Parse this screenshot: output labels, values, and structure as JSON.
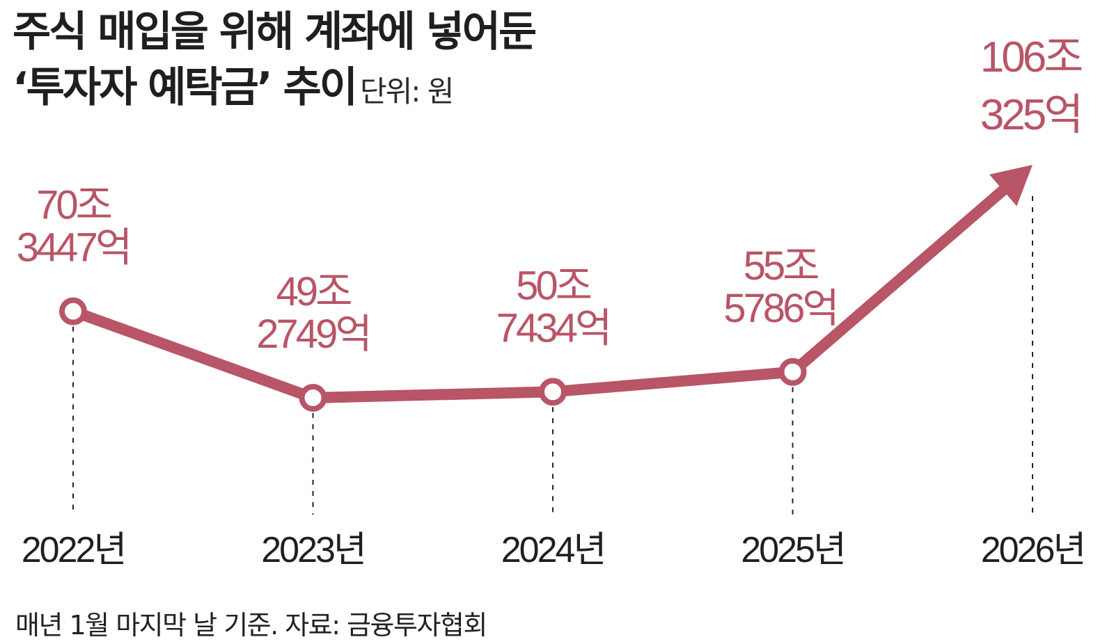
{
  "title": {
    "line1": "주식 매입을 위해 계좌에 넣어둔",
    "line2": "‘투자자 예탁금’ 추이",
    "unit": "단위: 원"
  },
  "footnote": "매년 1월 마지막 날 기준. 자료: 금융투자협회",
  "colors": {
    "line": "#b85566",
    "label": "#b85566",
    "text": "#1f1f1f",
    "guide": "#222222"
  },
  "chart_data": {
    "type": "line",
    "title": "주식 매입을 위해 계좌에 넣어둔 ‘투자자 예탁금’ 추이",
    "unit": "원",
    "categories": [
      "2022년",
      "2023년",
      "2024년",
      "2025년",
      "2026년"
    ],
    "values": [
      703447,
      492749,
      507434,
      555786,
      1060325
    ],
    "value_unit_note": "억원",
    "data_labels": [
      [
        "70조",
        "3447억"
      ],
      [
        "49조",
        "2749억"
      ],
      [
        "50조",
        "7434억"
      ],
      [
        "55조",
        "5786억"
      ],
      [
        "106조",
        "325억"
      ]
    ],
    "last_point_marker": "arrow",
    "grid": false,
    "legend": "none"
  }
}
